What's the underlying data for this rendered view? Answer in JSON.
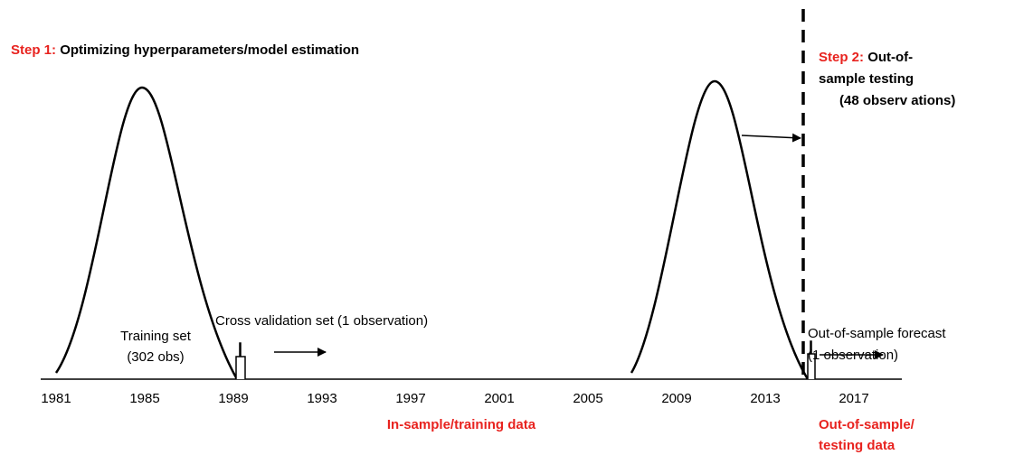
{
  "step1": {
    "label": "Step 1:",
    "text": "Optimizing hyperparameters/model estimation"
  },
  "step2": {
    "label": "Step 2:",
    "lines": [
      "Out-of-",
      "sample testing",
      "(48 observ ations)"
    ]
  },
  "training": [
    "Training set",
    "(302 obs)"
  ],
  "cross_validation": "Cross validation set (1 observation)",
  "forecast": [
    "Out-of-sample forecast",
    "(1 observation)"
  ],
  "axis": {
    "ticks": [
      "1981",
      "1985",
      "1989",
      "1993",
      "1997",
      "2001",
      "2005",
      "2009",
      "2013",
      "2017"
    ]
  },
  "in_sample": "In-sample/training data",
  "out_of_sample": [
    "Out-of-sample/",
    "testing data"
  ]
}
